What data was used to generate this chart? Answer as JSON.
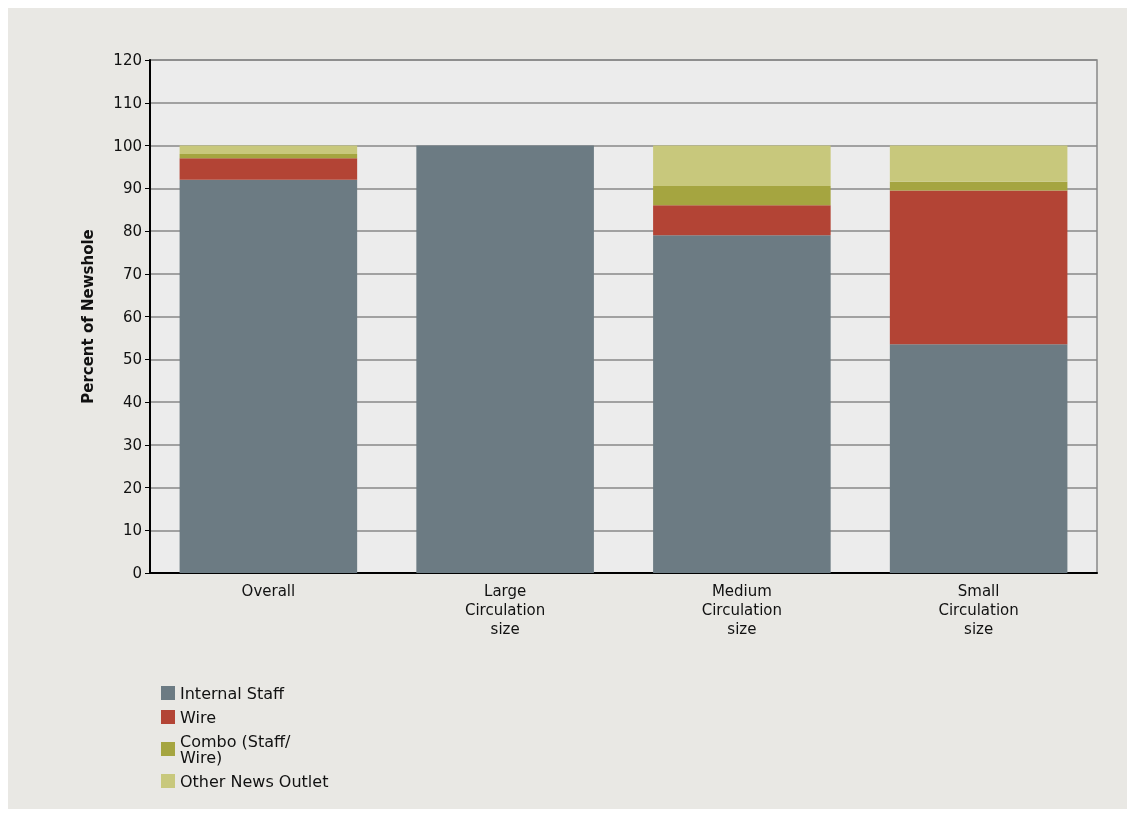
{
  "chart_data": {
    "type": "bar",
    "stacked": true,
    "ylabel": "Percent of Newshole",
    "categories": [
      "Overall",
      "Large\nCirculation\nsize",
      "Medium\nCirculation\nsize",
      "Small\nCirculation\nsize"
    ],
    "series": [
      {
        "name": "Internal Staff",
        "color": "#6c7b83",
        "values": [
          92,
          100,
          79,
          53.5
        ]
      },
      {
        "name": "Wire",
        "color": "#b34435",
        "values": [
          5,
          0,
          7,
          36
        ]
      },
      {
        "name": "Combo (Staff/\nWire)",
        "color": "#a5a540",
        "values": [
          1,
          0,
          4.5,
          2
        ]
      },
      {
        "name": "Other News Outlet",
        "color": "#c8c87c",
        "values": [
          2,
          0,
          9.5,
          8.5
        ]
      }
    ],
    "ylim": [
      0,
      120
    ],
    "yticks": [
      0,
      10,
      20,
      30,
      40,
      50,
      60,
      70,
      80,
      90,
      100,
      110,
      120
    ],
    "grid": "y",
    "legend": "bottom left"
  }
}
